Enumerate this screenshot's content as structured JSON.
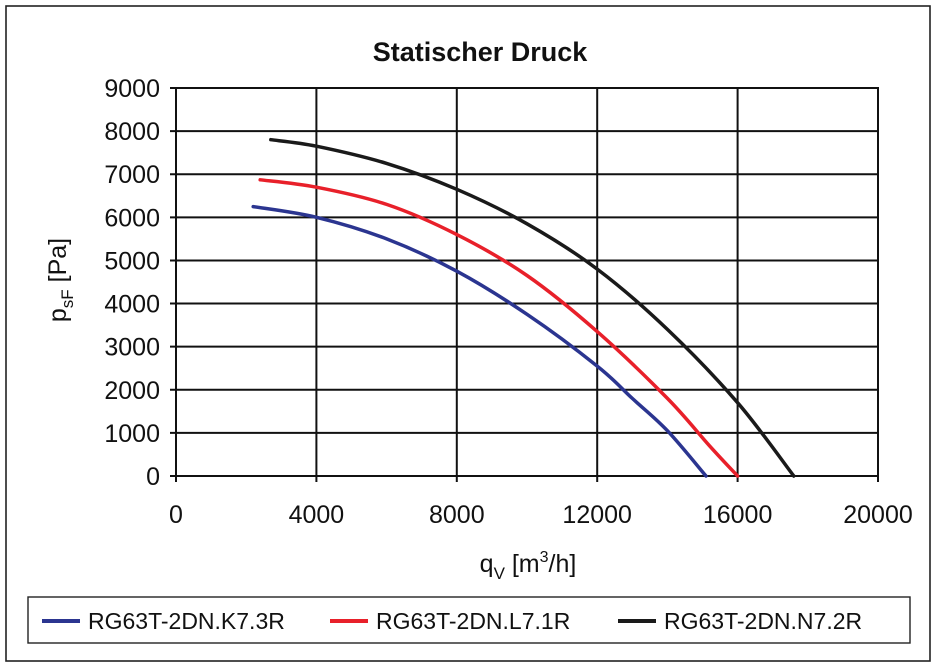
{
  "chart_data": {
    "type": "line",
    "title": "Statischer Druck",
    "xlabel": {
      "main": "q",
      "sub": "V",
      "unit_pre": " [m",
      "unit_sup": "3",
      "unit_post": "/h]"
    },
    "ylabel": {
      "main": "p",
      "sub": "sF",
      "unit": " [Pa]"
    },
    "xlim": [
      0,
      20000
    ],
    "ylim": [
      0,
      9000
    ],
    "xticks": [
      0,
      4000,
      8000,
      12000,
      16000,
      20000
    ],
    "yticks": [
      0,
      1000,
      2000,
      3000,
      4000,
      5000,
      6000,
      7000,
      8000,
      9000
    ],
    "xtick_labels": [
      "0",
      "4000",
      "8000",
      "12000",
      "16000",
      "20000"
    ],
    "ytick_labels": [
      "0",
      "1000",
      "2000",
      "3000",
      "4000",
      "5000",
      "6000",
      "7000",
      "8000",
      "9000"
    ],
    "grid": true,
    "legend_position": "bottom",
    "series": [
      {
        "name": "RG63T-2DN.K7.3R",
        "color": "#2b3590",
        "points": [
          [
            2200,
            6250
          ],
          [
            4000,
            6000
          ],
          [
            6000,
            5500
          ],
          [
            8000,
            4750
          ],
          [
            10000,
            3750
          ],
          [
            12000,
            2550
          ],
          [
            13000,
            1800
          ],
          [
            14000,
            1050
          ],
          [
            15100,
            0
          ]
        ]
      },
      {
        "name": "RG63T-2DN.L7.1R",
        "color": "#e8202a",
        "points": [
          [
            2400,
            6870
          ],
          [
            4000,
            6700
          ],
          [
            6000,
            6300
          ],
          [
            8000,
            5600
          ],
          [
            10000,
            4650
          ],
          [
            12000,
            3350
          ],
          [
            14000,
            1800
          ],
          [
            15200,
            700
          ],
          [
            16000,
            0
          ]
        ]
      },
      {
        "name": "RG63T-2DN.N7.2R",
        "color": "#1a1a1a",
        "points": [
          [
            2700,
            7800
          ],
          [
            4000,
            7650
          ],
          [
            6000,
            7250
          ],
          [
            8000,
            6650
          ],
          [
            10000,
            5850
          ],
          [
            12000,
            4800
          ],
          [
            14000,
            3400
          ],
          [
            16000,
            1700
          ],
          [
            17600,
            0
          ]
        ]
      }
    ]
  }
}
